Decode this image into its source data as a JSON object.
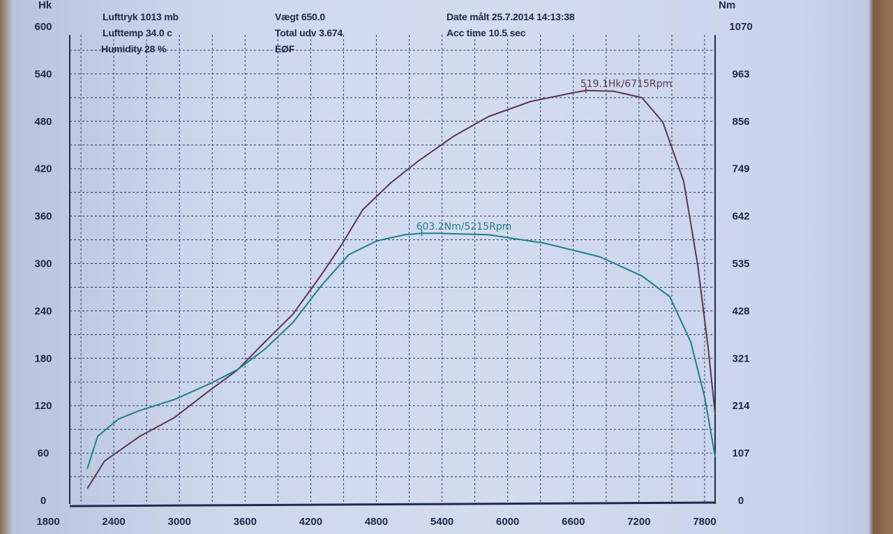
{
  "header": {
    "lufttryk": "Lufttryk  1013 mb",
    "lufttemp": "Lufttemp  34.0 c",
    "humidity": "Humidity   28 %",
    "vaegt": "Vægt     650.0",
    "total_udv": "Total udv 3.674",
    "eof": "EØF",
    "date": "Date målt 25.7.2014 14:13:38",
    "acc_time": "Acc time   10.5 sec"
  },
  "chart_data": {
    "type": "line",
    "ylabel": "Hk",
    "y2label": "Nm",
    "xlim": [
      1800,
      8100
    ],
    "ylim": [
      0,
      600
    ],
    "y2lim": [
      0,
      1070
    ],
    "grid": true,
    "x_ticks": [
      "1800",
      "2400",
      "3000",
      "3600",
      "4200",
      "4800",
      "5400",
      "6000",
      "6600",
      "7200",
      "7800"
    ],
    "y_ticks": [
      "0",
      "60",
      "120",
      "180",
      "240",
      "300",
      "360",
      "420",
      "480",
      "540",
      "600"
    ],
    "y2_ticks": [
      "0",
      "107",
      "214",
      "321",
      "428",
      "535",
      "642",
      "749",
      "856",
      "963",
      "1070"
    ],
    "colors": {
      "power": "#5a3550",
      "torque": "#1f7f86"
    },
    "series": [
      {
        "axis": "left",
        "color": "#5a3550",
        "x": [
          2157,
          2316,
          2635,
          2954,
          3273,
          3528,
          3783,
          4038,
          4293,
          4484,
          4675,
          4930,
          5186,
          5505,
          5824,
          6207,
          6589,
          6715,
          6972,
          7227,
          7418,
          7609,
          7737,
          7833,
          7897
        ],
        "y": [
          15,
          50,
          81,
          105,
          139,
          165,
          201,
          236,
          285,
          324,
          368,
          402,
          430,
          461,
          486,
          505,
          516,
          519.1,
          518,
          510,
          479,
          404,
          298,
          192,
          108
        ]
      },
      {
        "axis": "right",
        "color": "#1f7f86",
        "x": [
          2157,
          2253,
          2444,
          2635,
          2954,
          3273,
          3528,
          3783,
          4038,
          4293,
          4548,
          4803,
          5058,
          5215,
          5377,
          5824,
          6334,
          6844,
          7227,
          7482,
          7673,
          7801,
          7897
        ],
        "y": [
          71,
          145,
          184,
          203,
          228,
          263,
          295,
          342,
          402,
          484,
          555,
          586,
          600,
          603.2,
          603,
          600,
          581,
          550,
          507,
          460,
          358,
          232,
          98
        ]
      }
    ],
    "annotations": [
      {
        "text": "519.1Hk/6715Rpm",
        "series": 0,
        "x": 6715,
        "y": 519.1
      },
      {
        "text": "603.2Nm/5215Rpm",
        "series": 1,
        "x": 5215,
        "y": 603.2
      }
    ]
  }
}
